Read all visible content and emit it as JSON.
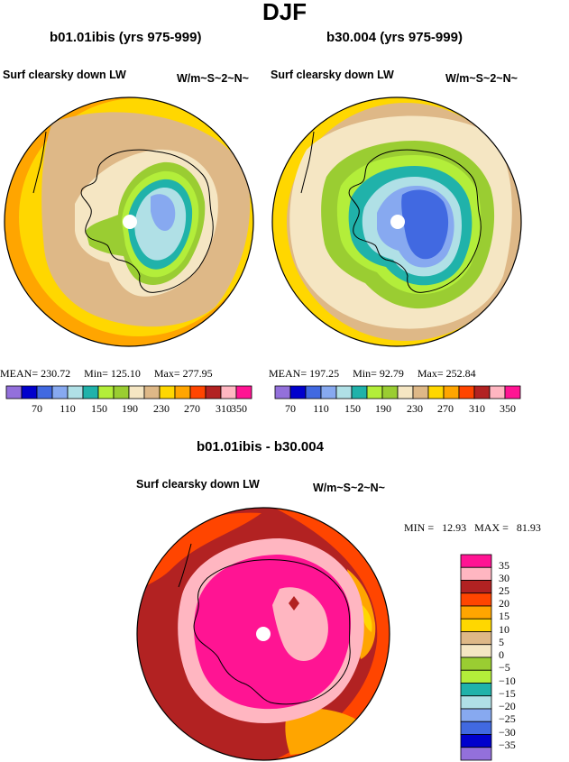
{
  "figure": {
    "title": "DJF"
  },
  "colors": {
    "bar": [
      "#9370DB",
      "#0000CD",
      "#4169E1",
      "#87A9F0",
      "#B0E0E6",
      "#20B2AA",
      "#B3EE3A",
      "#9ACD32",
      "#F5E6C3",
      "#DEB887",
      "#FFD700",
      "#FFA500",
      "#FF4500",
      "#B22222",
      "#FFB6C1",
      "#FF1493"
    ],
    "diff": [
      "#FF1493",
      "#FFB6C1",
      "#B22222",
      "#FF4500",
      "#FFA500",
      "#FFD700",
      "#DEB887",
      "#F5E6C3",
      "#9ACD32",
      "#B3EE3A",
      "#20B2AA",
      "#B0E0E6",
      "#87A9F0",
      "#4169E1",
      "#0000CD",
      "#9370DB"
    ]
  },
  "panels": [
    {
      "run": "b01.01ibis (yrs 975-999)",
      "variable": "Surf clearsky down LW",
      "units": "W/m~S~2~N~",
      "mean_label": "MEAN=",
      "mean": "230.72",
      "min_label": "Min=",
      "min": "125.10",
      "max_label": "Max=",
      "max": "277.95"
    },
    {
      "run": "b30.004 (yrs 975-999)",
      "variable": "Surf clearsky down LW",
      "units": "W/m~S~2~N~",
      "mean_label": "MEAN=",
      "mean": "197.25",
      "min_label": "Min=",
      "min": "92.79",
      "max_label": "Max=",
      "max": "252.84"
    }
  ],
  "colorbar": {
    "ticks": [
      "70",
      "110",
      "150",
      "190",
      "230",
      "270",
      "310",
      "350"
    ]
  },
  "diff_panel": {
    "title": "b01.01ibis - b30.004",
    "variable": "Surf clearsky down LW",
    "units": "W/m~S~2~N~",
    "min_label": "MIN =",
    "min": "12.93",
    "max_label": "MAX =",
    "max": "81.93",
    "levels": [
      "35",
      "30",
      "25",
      "20",
      "15",
      "10",
      "5",
      "0",
      "−5",
      "−10",
      "−15",
      "−20",
      "−25",
      "−30",
      "−35"
    ]
  }
}
